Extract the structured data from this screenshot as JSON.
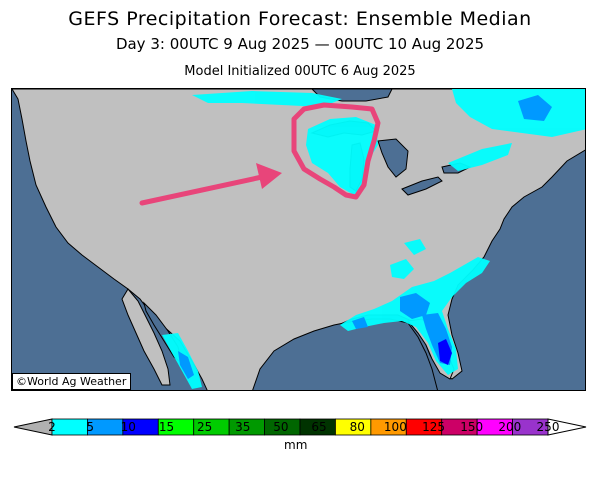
{
  "title": "GEFS Precipitation Forecast: Ensemble Median",
  "subtitle": "Day 3: 00UTC 9 Aug 2025 — 00UTC 10 Aug 2025",
  "initialized": "Model Initialized 00UTC 6 Aug 2025",
  "credit": "©World Ag Weather",
  "legend": {
    "units": "mm",
    "ticks": [
      "2",
      "5",
      "10",
      "15",
      "25",
      "35",
      "50",
      "65",
      "80",
      "100",
      "125",
      "150",
      "200",
      "250"
    ],
    "colors": [
      "#00ffff",
      "#0099ff",
      "#0000ff",
      "#00ff00",
      "#00cc00",
      "#009900",
      "#006600",
      "#003300",
      "#ffff00",
      "#ff9900",
      "#ff0000",
      "#cc0066",
      "#ff00ff",
      "#9933cc"
    ],
    "under_color": "#b0b0b0",
    "over_color": "#ffffff"
  },
  "map": {
    "land_color": "#c0c0c0",
    "water_color": "#4d6f94",
    "annotation_color": "#e8457a"
  }
}
